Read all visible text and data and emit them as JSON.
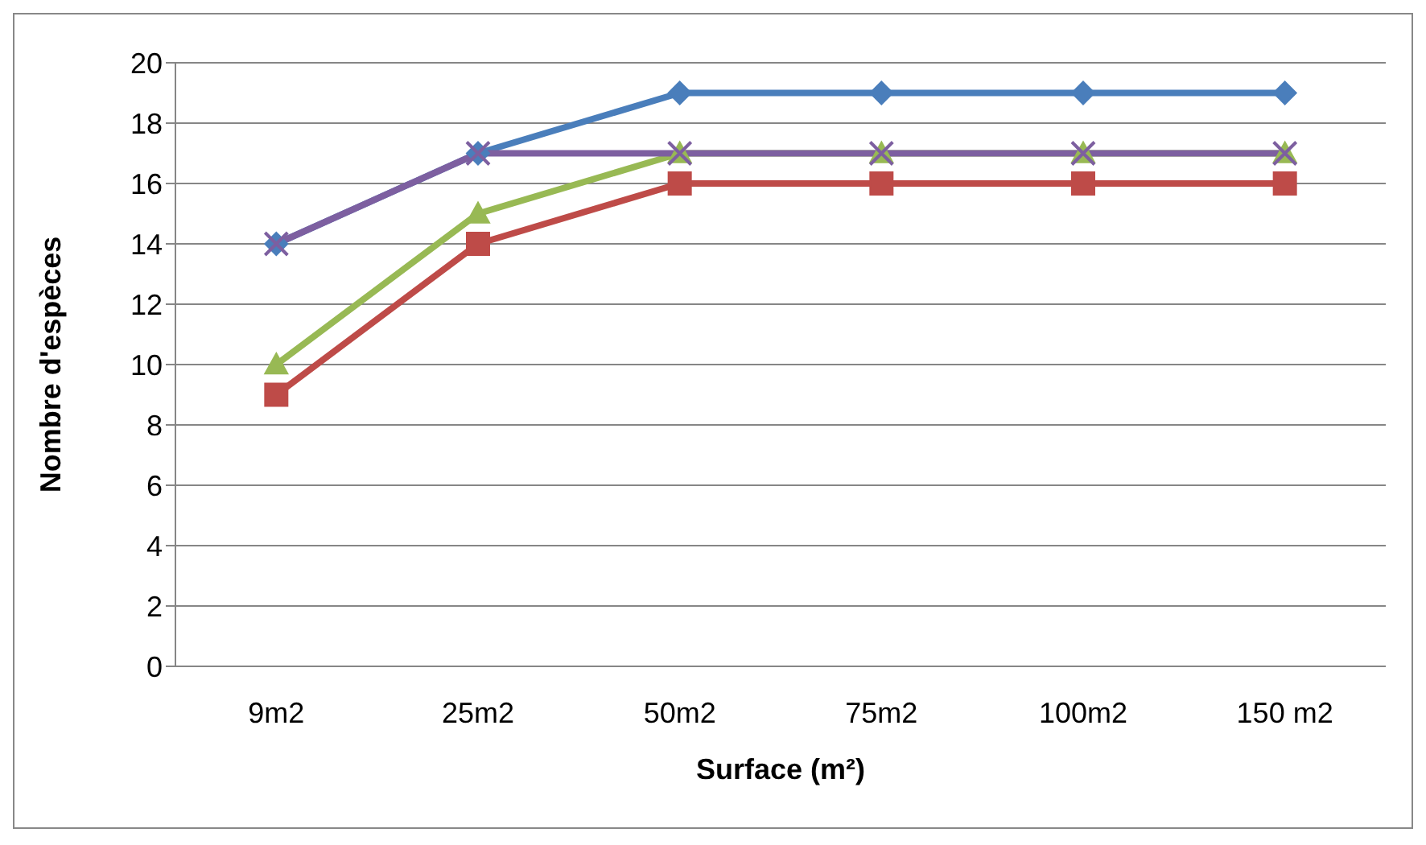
{
  "chart_data": {
    "type": "line",
    "xlabel": "Surface (m²)",
    "ylabel": "Nombre d'espèces",
    "categories": [
      "9m2",
      "25m2",
      "50m2",
      "75m2",
      "100m2",
      "150 m2"
    ],
    "series": [
      {
        "color": "#4a7ebb",
        "marker": "diamond",
        "values": [
          14,
          17,
          19,
          19,
          19,
          19
        ]
      },
      {
        "color": "#be4b48",
        "marker": "square",
        "values": [
          9,
          14,
          16,
          16,
          16,
          16
        ]
      },
      {
        "color": "#98b954",
        "marker": "triangle",
        "values": [
          10,
          15,
          17,
          17,
          17,
          17
        ]
      },
      {
        "color": "#7d5fa0",
        "marker": "cross",
        "values": [
          14,
          17,
          17,
          17,
          17,
          17
        ]
      }
    ],
    "ylim": [
      0,
      20
    ],
    "yticks": [
      0,
      2,
      4,
      6,
      8,
      10,
      12,
      14,
      16,
      18,
      20
    ],
    "grid": "y",
    "legend": false,
    "line_style": "solid"
  }
}
